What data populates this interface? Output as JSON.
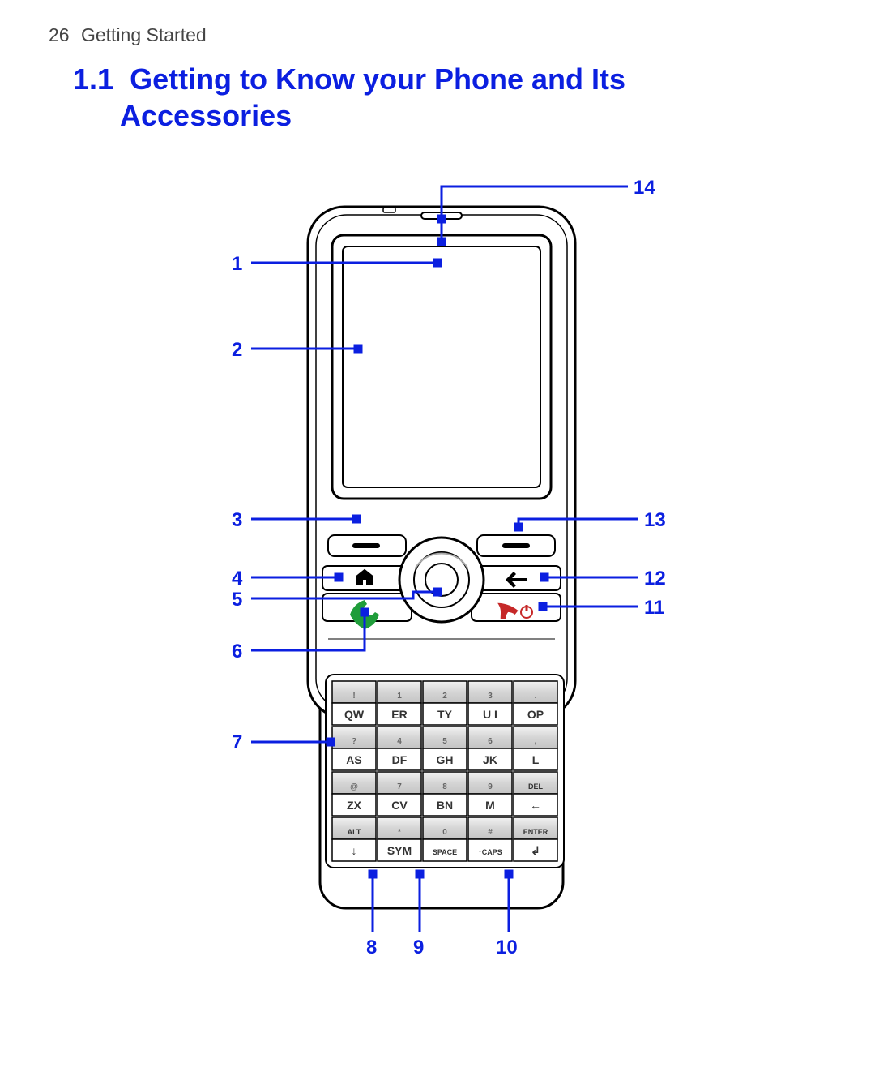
{
  "page_number": "26",
  "running_head": "Getting Started",
  "section_number": "1.1",
  "section_title_line1": "Getting to Know your Phone and Its",
  "section_title_line2": "Accessories",
  "colors": {
    "accent_blue": "#0b1fe0",
    "stroke_black": "#000000",
    "call_green": "#1f9d3a",
    "end_red": "#c62828",
    "key_grad_light": "#e8e8e8",
    "key_grad_mid": "#cfcfcf",
    "key_grad_dark": "#bfbfbf",
    "screen_inner": "#ffffff"
  },
  "callouts": {
    "1": "1",
    "2": "2",
    "3": "3",
    "4": "4",
    "5": "5",
    "6": "6",
    "7": "7",
    "8": "8",
    "9": "9",
    "10": "10",
    "11": "11",
    "12": "12",
    "13": "13",
    "14": "14"
  },
  "keypad": {
    "rows": [
      {
        "top": [
          "!",
          "1",
          "2",
          "3",
          "."
        ],
        "bot": [
          "QW",
          "ER",
          "TY",
          "U I",
          "OP"
        ]
      },
      {
        "top": [
          "?",
          "4",
          "5",
          "6",
          ","
        ],
        "bot": [
          "AS",
          "DF",
          "GH",
          "JK",
          "L"
        ]
      },
      {
        "top": [
          "@",
          "7",
          "8",
          "9",
          "DEL"
        ],
        "bot": [
          "ZX",
          "CV",
          "BN",
          "M",
          "←"
        ]
      },
      {
        "top": [
          "ALT",
          "*",
          "0",
          "#",
          "ENTER"
        ],
        "bot": [
          "↓",
          "SYM",
          "SPACE",
          "↑CAPS",
          "↲"
        ]
      }
    ]
  }
}
